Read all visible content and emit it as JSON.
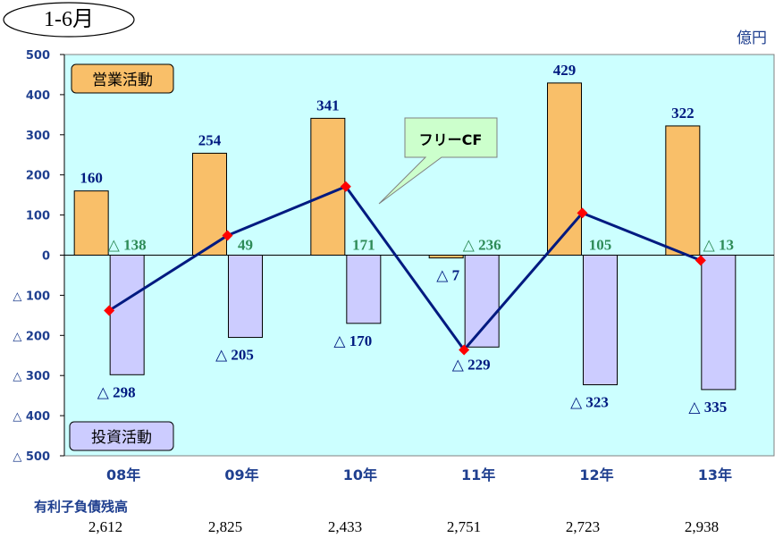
{
  "period_label": "1-6月",
  "unit_label": "億円",
  "labels": {
    "operating": "営業活動",
    "investing": "投資活動",
    "free_cf": "フリーCF"
  },
  "debt": {
    "title": "有利子負債残高",
    "values": [
      "2,612",
      "2,825",
      "2,433",
      "2,751",
      "2,723",
      "2,938"
    ]
  },
  "colors": {
    "plot_bg": "#ccffff",
    "operating": "#f9bf69",
    "investing": "#ccccff",
    "free_cf_line": "#001a80",
    "free_cf_marker": "#ff0000",
    "operating_label": "#001a80",
    "investing_label": "#001a80",
    "free_cf_label": "#2e8b57"
  },
  "chart_data": {
    "type": "bar",
    "categories": [
      "08年",
      "09年",
      "10年",
      "11年",
      "12年",
      "13年"
    ],
    "ylim": [
      -500,
      500
    ],
    "yticks": [
      500,
      400,
      300,
      200,
      100,
      0,
      -100,
      -200,
      -300,
      -400,
      -500
    ],
    "ytick_labels": [
      "500",
      "400",
      "300",
      "200",
      "100",
      "0",
      "△ 100",
      "△ 200",
      "△ 300",
      "△ 400",
      "△ 500"
    ],
    "series": [
      {
        "name": "営業活動",
        "type": "bar",
        "values": [
          160,
          254,
          341,
          -7,
          429,
          322
        ],
        "data_labels": [
          "160",
          "254",
          "341",
          "△ 7",
          "429",
          "322"
        ]
      },
      {
        "name": "投資活動",
        "type": "bar",
        "values": [
          -298,
          -205,
          -170,
          -229,
          -323,
          -335
        ],
        "data_labels": [
          "△ 298",
          "△ 205",
          "△ 170",
          "△ 229",
          "△ 323",
          "△ 335"
        ]
      },
      {
        "name": "フリーCF",
        "type": "line",
        "values": [
          -138,
          49,
          171,
          -236,
          105,
          -13
        ],
        "data_labels": [
          "△ 138",
          "49",
          "171",
          "△ 236",
          "105",
          "△ 13"
        ]
      }
    ]
  }
}
